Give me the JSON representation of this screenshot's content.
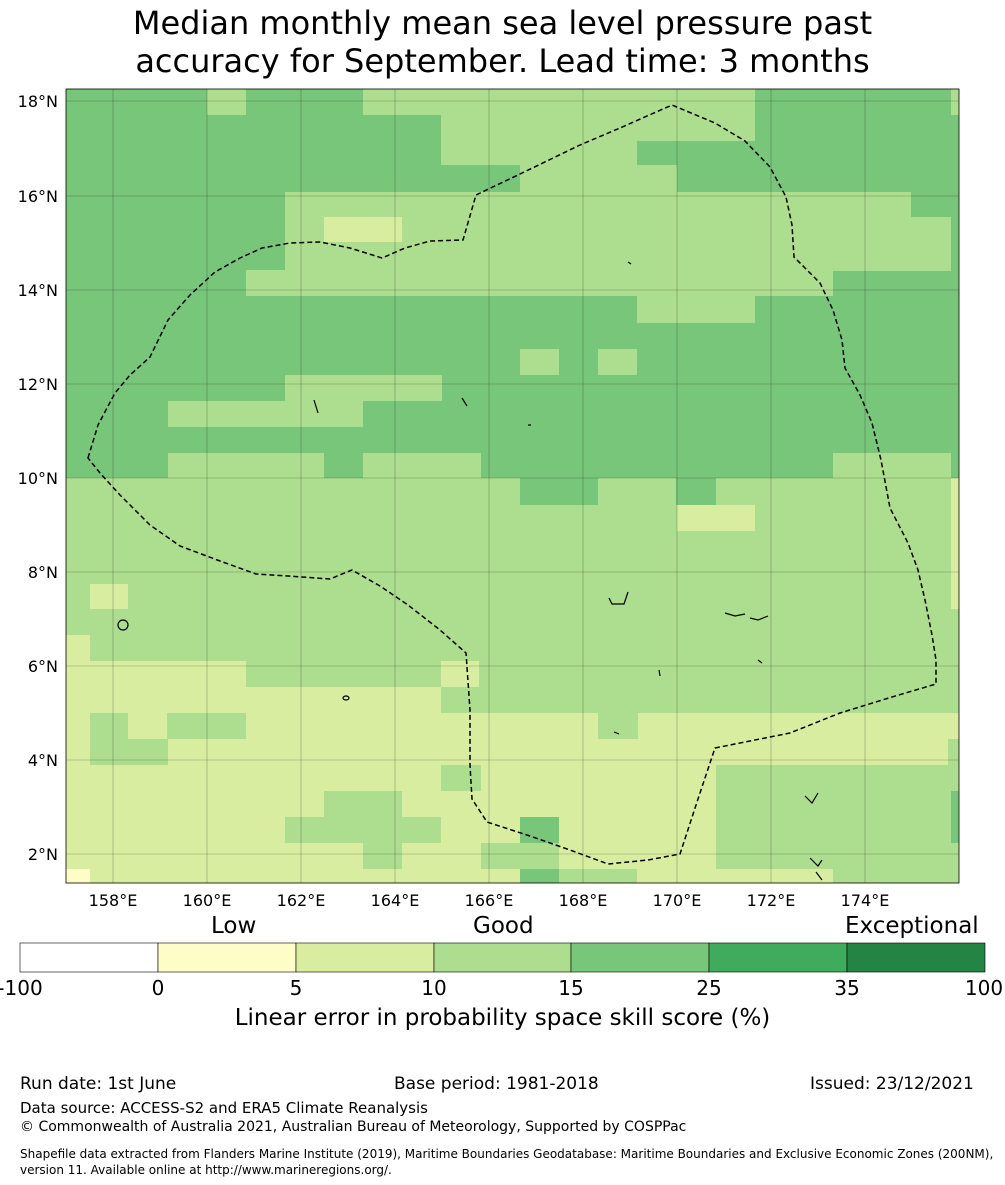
{
  "title_line1": "Median monthly mean sea level pressure past",
  "title_line2": "accuracy for September. Lead time: 3 months",
  "map": {
    "lat_ticks": [
      "18°N",
      "16°N",
      "14°N",
      "12°N",
      "10°N",
      "8°N",
      "6°N",
      "4°N",
      "2°N"
    ],
    "lon_ticks": [
      "158°E",
      "160°E",
      "162°E",
      "164°E",
      "166°E",
      "168°E",
      "170°E",
      "172°E",
      "174°E"
    ],
    "category_colors": {
      "c1": "#fffdc7",
      "c2": "#d9eda0",
      "c3": "#addd8e",
      "c4": "#78c679",
      "c5": "#41ab5d",
      "c6": "#238443"
    }
  },
  "colorbar": {
    "category_low": "Low",
    "category_good": "Good",
    "category_exceptional": "Exceptional",
    "ticks": [
      "-100",
      "0",
      "5",
      "10",
      "15",
      "25",
      "35",
      "100"
    ],
    "colors": [
      "#ffffff",
      "#fffdc7",
      "#d9eda0",
      "#addd8e",
      "#78c679",
      "#41ab5d",
      "#238443"
    ],
    "xlabel": "Linear error in probability space skill score (%)"
  },
  "footer": {
    "run_date": "Run date: 1st June",
    "base_period": "Base period: 1981-2018",
    "issued": "Issued: 23/12/2021",
    "data_source": "Data source: ACCESS-S2 and ERA5 Climate Reanalysis",
    "copyright": "© Commonwealth of Australia 2021, Australian Bureau of Meteorology, Supported by COSPPac",
    "shapefile_line1": "Shapefile data extracted from Flanders Marine Institute (2019), Maritime Boundaries Geodatabase: Maritime Boundaries and Exclusive Economic Zones (200NM),",
    "shapefile_line2": "version 11. Available online at http://www.marineregions.org/."
  }
}
